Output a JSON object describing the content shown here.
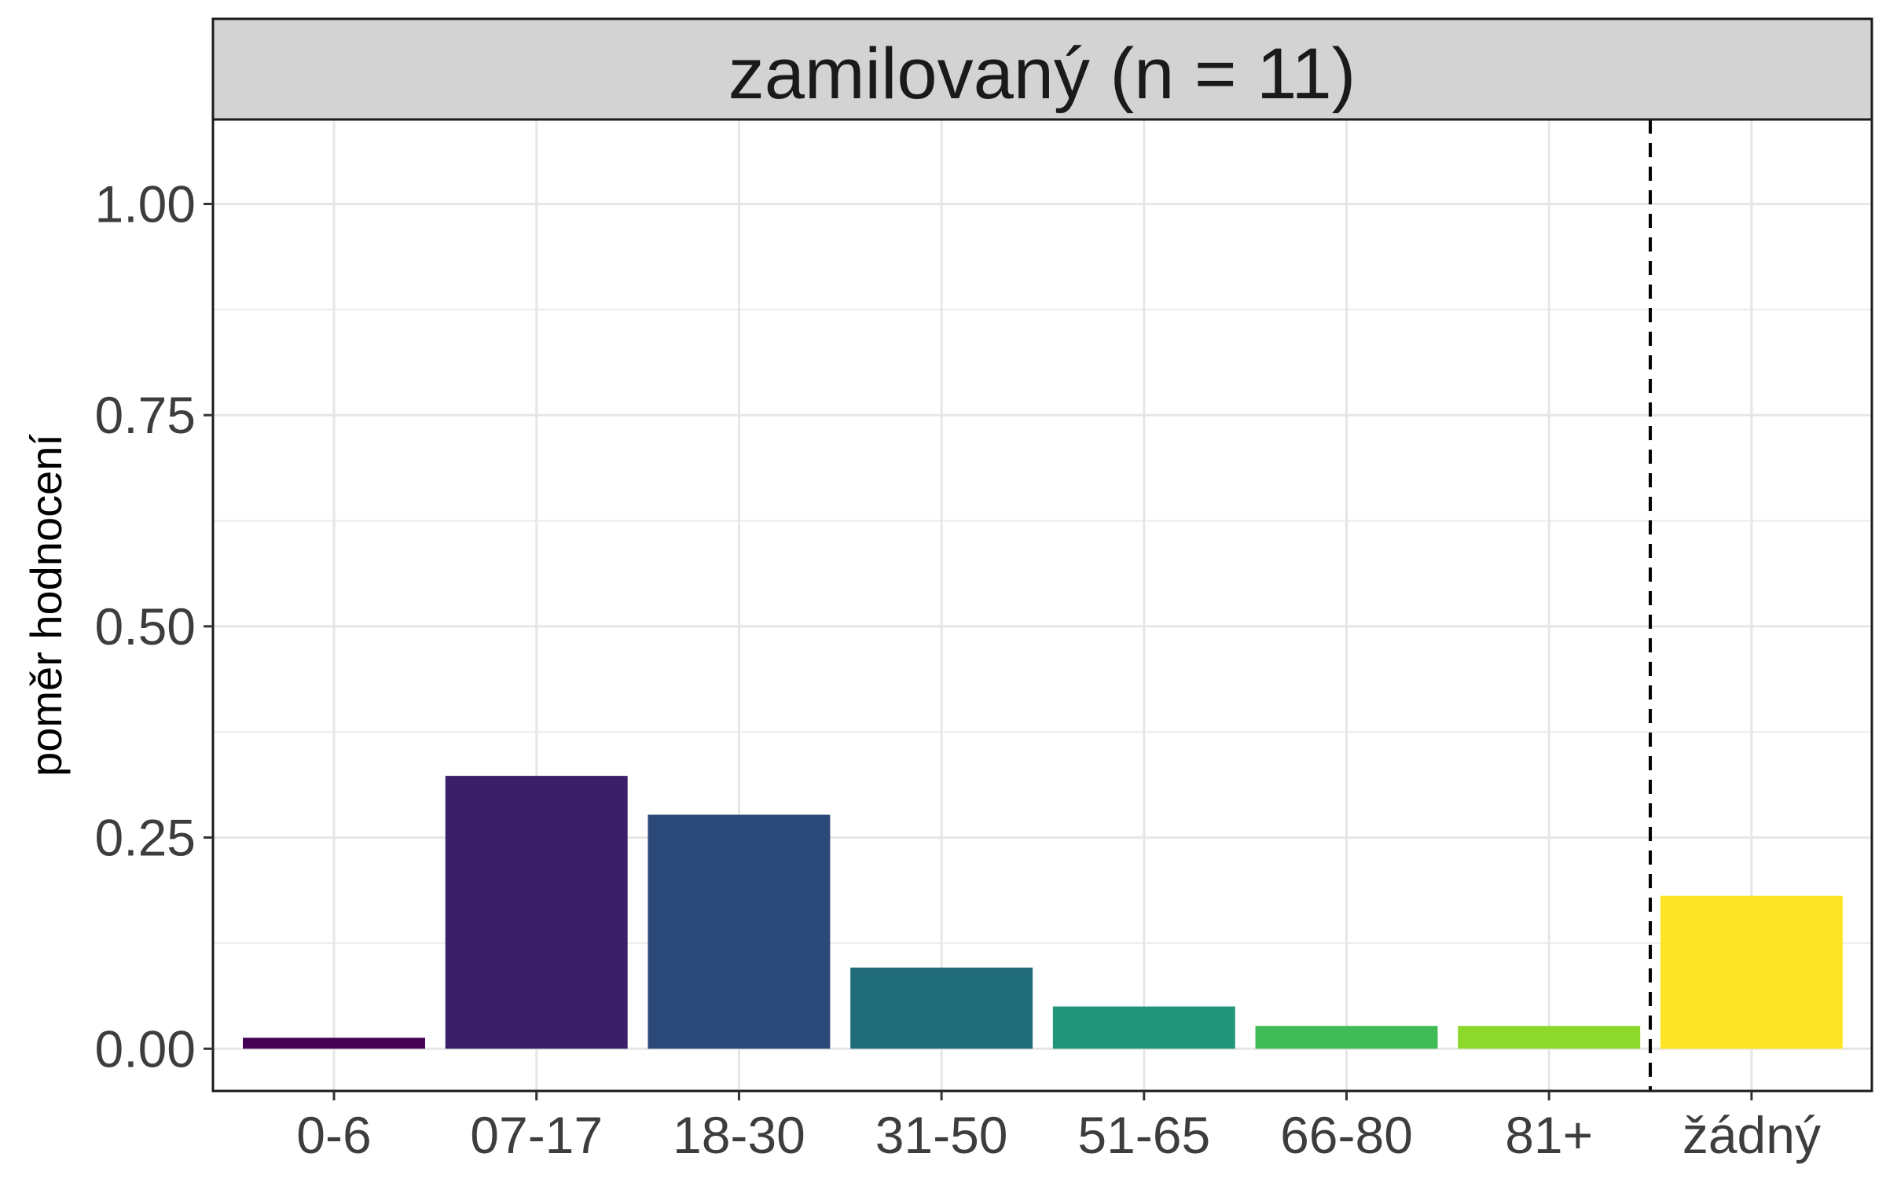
{
  "chart_data": {
    "type": "bar",
    "facet_title": "zamilovaný (n = 11)",
    "xlabel": "",
    "ylabel": "poměr hodnocení",
    "ylim": [
      -0.05,
      1.1
    ],
    "yticks": [
      0.0,
      0.25,
      0.5,
      0.75,
      1.0
    ],
    "ytick_labels": [
      "0.00",
      "0.25",
      "0.50",
      "0.75",
      "1.00"
    ],
    "categories": [
      "0-6",
      "07-17",
      "18-30",
      "31-50",
      "51-65",
      "66-80",
      "81+",
      "žádný"
    ],
    "values": [
      0.013,
      0.323,
      0.277,
      0.096,
      0.05,
      0.027,
      0.027,
      0.181
    ],
    "colors": [
      "#440154",
      "#3b1f68",
      "#2c4a79",
      "#206c7a",
      "#22957a",
      "#40bb55",
      "#8ed72c",
      "#fde425"
    ],
    "separator": {
      "style": "dashed",
      "between": [
        "81+",
        "žádný"
      ]
    },
    "grid": true,
    "legend": "none"
  }
}
